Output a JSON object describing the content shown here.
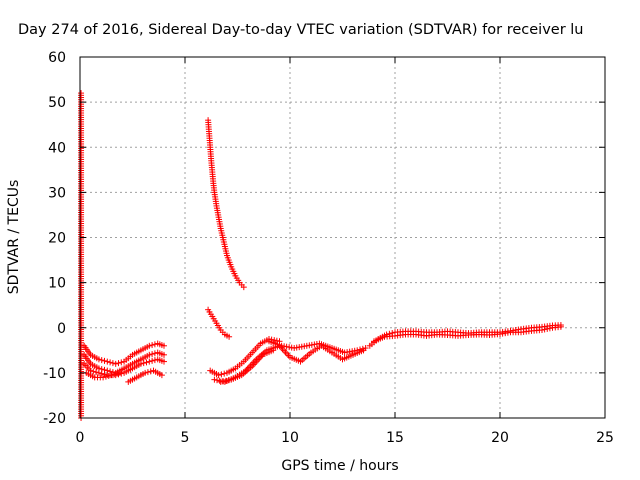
{
  "chart_data": {
    "type": "scatter",
    "title": "Day 274 of 2016, Sidereal Day-to-day VTEC variation (SDTVAR) for receiver lu",
    "xlabel": "GPS time / hours",
    "ylabel": "SDTVAR / TECUs",
    "xlim": [
      0,
      25
    ],
    "ylim": [
      -20,
      60
    ],
    "xticks": [
      "0",
      "5",
      "10",
      "15",
      "20",
      "25"
    ],
    "yticks": [
      "-20",
      "-10",
      "0",
      "10",
      "20",
      "30",
      "40",
      "50",
      "60"
    ],
    "grid": true,
    "marker": "plus",
    "color": "#ff0000",
    "series": [
      {
        "x": [
          0.05,
          0.05,
          0.05,
          0.05
        ],
        "y": [
          52,
          27.5,
          5,
          -20
        ]
      },
      {
        "x": [
          0.2,
          0.5,
          0.9,
          1.3,
          1.7,
          2.1,
          2.5,
          2.9,
          3.3,
          3.7,
          4.0
        ],
        "y": [
          -4,
          -6,
          -7,
          -7.5,
          -8,
          -7.5,
          -6,
          -5,
          -4,
          -3.5,
          -4
        ]
      },
      {
        "x": [
          0.2,
          0.5,
          0.9,
          1.3,
          1.7,
          2.1,
          2.5,
          2.9,
          3.3,
          3.7,
          4.0
        ],
        "y": [
          -6,
          -8,
          -9,
          -9.5,
          -10,
          -9,
          -8,
          -7,
          -6,
          -5.5,
          -6
        ]
      },
      {
        "x": [
          0.2,
          0.5,
          0.9,
          1.3,
          1.7,
          2.1,
          2.5,
          2.9,
          3.3,
          3.7,
          4.0
        ],
        "y": [
          -8,
          -9.5,
          -10,
          -10.5,
          -10.5,
          -10,
          -9,
          -8,
          -7.5,
          -7,
          -7.5
        ]
      },
      {
        "x": [
          0.3,
          0.7,
          1.1,
          1.5,
          1.9
        ],
        "y": [
          -10,
          -11,
          -11,
          -10.5,
          -10
        ]
      },
      {
        "x": [
          2.3,
          2.7,
          3.1,
          3.5,
          3.9
        ],
        "y": [
          -12,
          -11,
          -10,
          -9.5,
          -10.5
        ]
      },
      {
        "x": [
          6.1,
          6.15,
          6.2,
          6.25,
          6.3,
          6.35,
          6.4,
          6.5,
          6.6,
          6.7,
          6.8,
          6.9,
          7.0,
          7.2,
          7.4,
          7.6,
          7.8
        ],
        "y": [
          46,
          43,
          40,
          37,
          34.5,
          32,
          30,
          27,
          24.5,
          22,
          20,
          18,
          16,
          13.5,
          11.5,
          10,
          9
        ]
      },
      {
        "x": [
          6.1,
          6.3,
          6.5,
          6.7,
          6.9,
          7.1
        ],
        "y": [
          4,
          2.5,
          1,
          -0.5,
          -1.5,
          -2
        ]
      },
      {
        "x": [
          6.2,
          6.6,
          7.0,
          7.4,
          7.8,
          8.2,
          8.6,
          9.0,
          9.5
        ],
        "y": [
          -9.5,
          -10.5,
          -10,
          -9,
          -7.5,
          -5.5,
          -3.5,
          -2.5,
          -3
        ]
      },
      {
        "x": [
          6.4,
          6.9,
          7.4,
          7.9,
          8.4,
          8.9,
          9.5
        ],
        "y": [
          -11.5,
          -12,
          -11,
          -9.5,
          -7,
          -5,
          -4
        ]
      },
      {
        "x": [
          6.7,
          7.2,
          7.7,
          8.2,
          8.7,
          9.2
        ],
        "y": [
          -12,
          -11.5,
          -10.5,
          -8.5,
          -6,
          -5
        ]
      },
      {
        "x": [
          9.0,
          9.6,
          10.2,
          10.8,
          11.4,
          12.0,
          12.6,
          13.2,
          13.6
        ],
        "y": [
          -3,
          -4,
          -4.5,
          -4,
          -3.5,
          -4.5,
          -5.5,
          -5,
          -4.5
        ]
      },
      {
        "x": [
          9.5,
          10.0,
          10.5,
          11.0,
          11.5,
          12.0,
          12.5,
          13.0,
          13.5
        ],
        "y": [
          -4,
          -6.5,
          -7.5,
          -5.5,
          -4,
          -5.5,
          -7,
          -6,
          -5
        ]
      },
      {
        "x": [
          13.8,
          14.2,
          14.6,
          15.0,
          15.5,
          16.0,
          16.5,
          17.0,
          17.5,
          18.0,
          18.5,
          19.0,
          19.5,
          20.0,
          20.5,
          21.0,
          21.5,
          22.0,
          22.5,
          22.9
        ],
        "y": [
          -4,
          -2.5,
          -1.5,
          -1,
          -0.8,
          -0.8,
          -1,
          -1,
          -0.8,
          -1,
          -1.2,
          -1,
          -1,
          -1,
          -0.7,
          -0.3,
          0,
          0.2,
          0.5,
          0.6
        ]
      },
      {
        "x": [
          14.0,
          14.5,
          15.0,
          15.5,
          16.0,
          16.5,
          17.0,
          17.5,
          18.0,
          18.5,
          19.0,
          19.5,
          20.0,
          20.5,
          21.0,
          21.5,
          22.0,
          22.5,
          22.9
        ],
        "y": [
          -3,
          -2,
          -1.8,
          -1.5,
          -1.5,
          -1.8,
          -1.5,
          -1.6,
          -1.8,
          -1.6,
          -1.5,
          -1.6,
          -1.4,
          -1,
          -1,
          -0.7,
          -0.5,
          0,
          0.2
        ]
      }
    ]
  }
}
